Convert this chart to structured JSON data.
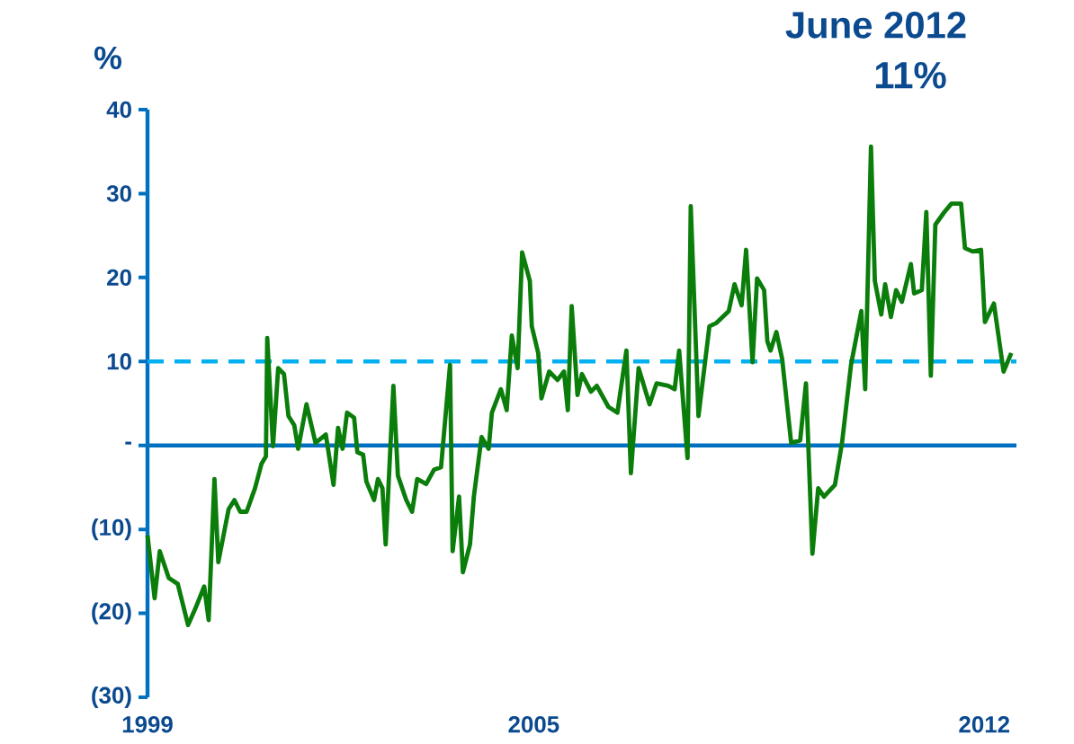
{
  "chart_data": {
    "type": "line",
    "title": "June 2012",
    "subtitle": "11%",
    "ylabel": "%",
    "x": [
      1999.0,
      1999.11,
      1999.19,
      1999.33,
      1999.47,
      1999.63,
      1999.75,
      1999.88,
      1999.95,
      2000.04,
      2000.1,
      2000.26,
      2000.35,
      2000.44,
      2000.54,
      2000.67,
      2000.77,
      2000.84,
      2000.86,
      2000.95,
      2001.03,
      2001.12,
      2001.19,
      2001.28,
      2001.34,
      2001.47,
      2001.61,
      2001.77,
      2001.89,
      2001.96,
      2002.03,
      2002.1,
      2002.21,
      2002.26,
      2002.35,
      2002.4,
      2002.52,
      2002.58,
      2002.65,
      2002.7,
      2002.82,
      2002.89,
      2003.02,
      2003.11,
      2003.19,
      2003.33,
      2003.45,
      2003.56,
      2003.7,
      2003.74,
      2003.84,
      2003.9,
      2004.01,
      2004.07,
      2004.19,
      2004.3,
      2004.35,
      2004.49,
      2004.58,
      2004.66,
      2004.75,
      2004.82,
      2004.94,
      2004.97,
      2005.07,
      2005.12,
      2005.24,
      2005.37,
      2005.47,
      2005.53,
      2005.59,
      2005.68,
      2005.75,
      2005.89,
      2005.98,
      2006.16,
      2006.3,
      2006.44,
      2006.51,
      2006.63,
      2006.8,
      2006.91,
      2007.09,
      2007.19,
      2007.26,
      2007.39,
      2007.44,
      2007.56,
      2007.73,
      2007.84,
      2008.03,
      2008.12,
      2008.23,
      2008.3,
      2008.4,
      2008.47,
      2008.58,
      2008.63,
      2008.68,
      2008.77,
      2008.86,
      2009.0,
      2009.14,
      2009.23,
      2009.33,
      2009.42,
      2009.51,
      2009.68,
      2009.79,
      2009.93,
      2010.09,
      2010.15,
      2010.24,
      2010.3,
      2010.4,
      2010.46,
      2010.55,
      2010.63,
      2010.72,
      2010.86,
      2010.91,
      2011.03,
      2011.1,
      2011.17,
      2011.24,
      2011.38,
      2011.49,
      2011.64,
      2011.7,
      2011.82,
      2011.95,
      2012.01,
      2012.15,
      2012.3,
      2012.42
    ],
    "values": [
      -10.7,
      -18.2,
      -12.6,
      -15.8,
      -16.5,
      -21.4,
      -19.3,
      -16.8,
      -20.8,
      -4.0,
      -13.9,
      -7.6,
      -6.5,
      -7.9,
      -7.9,
      -5.1,
      -2.2,
      -1.3,
      12.8,
      -0.1,
      9.2,
      8.5,
      3.5,
      2.4,
      -0.4,
      4.9,
      0.3,
      1.3,
      -4.7,
      2.1,
      -0.4,
      3.9,
      3.3,
      -0.8,
      -1.1,
      -4.3,
      -6.5,
      -4.0,
      -5.1,
      -11.8,
      7.1,
      -3.6,
      -6.5,
      -7.9,
      -4.0,
      -4.6,
      -2.9,
      -2.6,
      9.6,
      -12.6,
      -6.1,
      -15.1,
      -11.8,
      -6.1,
      1.0,
      -0.4,
      3.9,
      6.7,
      4.2,
      13.1,
      9.2,
      23.0,
      19.6,
      14.2,
      11.0,
      5.6,
      8.8,
      7.8,
      8.8,
      4.2,
      16.6,
      6.0,
      8.5,
      6.4,
      7.1,
      4.6,
      3.9,
      11.3,
      -3.3,
      9.2,
      4.9,
      7.4,
      7.1,
      6.7,
      11.3,
      -1.5,
      28.5,
      3.5,
      14.2,
      14.6,
      16.0,
      19.2,
      16.7,
      23.3,
      9.9,
      19.9,
      18.5,
      12.4,
      11.3,
      13.5,
      10.3,
      0.3,
      0.6,
      7.4,
      -12.9,
      -5.1,
      -6.1,
      -4.7,
      0.3,
      9.6,
      16.0,
      6.7,
      35.6,
      19.6,
      15.6,
      19.2,
      15.3,
      18.5,
      17.1,
      21.6,
      18.1,
      18.5,
      27.8,
      8.3,
      26.3,
      27.8,
      28.8,
      28.8,
      23.5,
      23.1,
      23.3,
      14.7,
      16.9,
      8.8,
      11.0
    ],
    "color": "#0a7d0a",
    "line_style": "solid",
    "marker": "none",
    "grid": false,
    "xlim": [
      1999,
      2012.5
    ],
    "xticks": [
      {
        "value": 1999,
        "label": "1999"
      },
      {
        "value": 2005,
        "label": "2005"
      },
      {
        "value": 2012,
        "label": "2012"
      }
    ],
    "ylim": [
      -30,
      40
    ],
    "yticks": [
      {
        "value": -30,
        "label": "(30)"
      },
      {
        "value": -20,
        "label": "(20)"
      },
      {
        "value": -10,
        "label": "(10)"
      },
      {
        "value": 0,
        "label": "-"
      },
      10,
      20,
      30,
      40
    ],
    "ref_lines": [
      {
        "axis": "y",
        "value": 10,
        "color": "#00b0f0",
        "line_style": "dashed"
      },
      {
        "axis": "y",
        "value": 0,
        "color": "#0070c0",
        "line_style": "solid"
      }
    ]
  }
}
